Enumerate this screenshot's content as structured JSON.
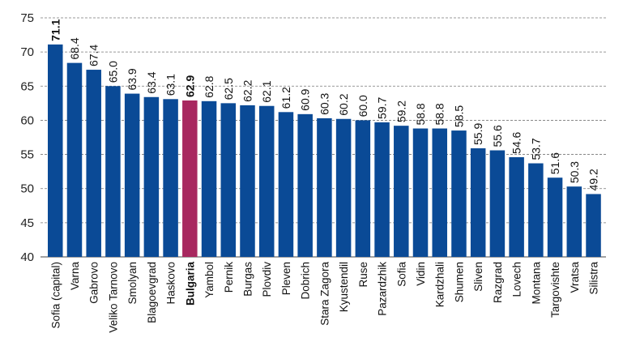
{
  "chart_data": {
    "type": "bar",
    "title": "",
    "xlabel": "",
    "ylabel": "",
    "ylim": [
      40,
      75
    ],
    "yticks": [
      40,
      45,
      50,
      55,
      60,
      65,
      70,
      75
    ],
    "grid": true,
    "categories": [
      "Sofia (capital)",
      "Varna",
      "Gabrovo",
      "Veliko Tarnovo",
      "Smolyan",
      "Blagoevgrad",
      "Haskovo",
      "Bulgaria",
      "Yambol",
      "Pernik",
      "Burgas",
      "Plovdiv",
      "Pleven",
      "Dobrich",
      "Stara Zagora",
      "Kyustendil",
      "Ruse",
      "Pazardzhik",
      "Sofia",
      "Vidin",
      "Kardzhali",
      "Shumen",
      "Sliven",
      "Razgrad",
      "Lovech",
      "Montana",
      "Targovishte",
      "Vratsa",
      "Silistra"
    ],
    "values": [
      71.1,
      68.4,
      67.4,
      65.0,
      63.9,
      63.4,
      63.1,
      62.9,
      62.8,
      62.5,
      62.2,
      62.1,
      61.2,
      60.9,
      60.3,
      60.2,
      60.0,
      59.7,
      59.2,
      58.8,
      58.8,
      58.5,
      55.9,
      55.6,
      54.6,
      53.7,
      51.6,
      50.3,
      49.2
    ],
    "value_labels": [
      "71.1",
      "68.4",
      "67.4",
      "65.0",
      "63.9",
      "63.4",
      "63.1",
      "62.9",
      "62.8",
      "62.5",
      "62.2",
      "62.1",
      "61.2",
      "60.9",
      "60.3",
      "60.2",
      "60.0",
      "59.7",
      "59.2",
      "58.8",
      "58.8",
      "58.5",
      "55.9",
      "55.6",
      "54.6",
      "53.7",
      "51.6",
      "50.3",
      "49.2"
    ],
    "highlight_category": "Bulgaria",
    "bold_value_categories": [
      "Sofia (capital)",
      "Bulgaria"
    ],
    "colors": {
      "bar": "#0a4a96",
      "highlight_bar": "#a8285f",
      "highlight_text": "#a8285f",
      "max_label_text": "#0a4a96"
    }
  }
}
